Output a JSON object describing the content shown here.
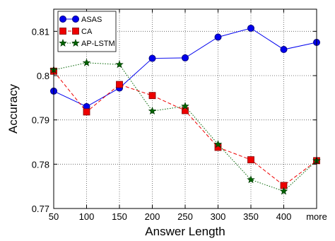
{
  "chart_data": {
    "type": "line",
    "title": "",
    "xlabel": "Answer Length",
    "ylabel": "Accuracy",
    "categories": [
      "50",
      "100",
      "150",
      "200",
      "250",
      "300",
      "350",
      "400",
      "more"
    ],
    "ylim": [
      0.77,
      0.815
    ],
    "yticks": [
      "0.77",
      "0.78",
      "0.79",
      "0.8",
      "0.81"
    ],
    "ytick_values": [
      0.77,
      0.78,
      0.79,
      0.8,
      0.81
    ],
    "grid": true,
    "legend_position": "top-left",
    "series": [
      {
        "name": "ASAS",
        "color": "#0000ee",
        "marker": "circle",
        "line": "solid",
        "values": [
          0.7965,
          0.793,
          0.7972,
          0.8039,
          0.804,
          0.8087,
          0.8107,
          0.8059,
          0.8075
        ]
      },
      {
        "name": "CA",
        "color": "#ee0000",
        "marker": "square",
        "line": "dashed",
        "values": [
          0.801,
          0.7918,
          0.798,
          0.7955,
          0.7921,
          0.7838,
          0.781,
          0.7752,
          0.7808
        ]
      },
      {
        "name": "AP-LSTM",
        "color": "#006400",
        "marker": "star",
        "line": "dotted",
        "values": [
          0.8013,
          0.8029,
          0.8025,
          0.792,
          0.7931,
          0.7845,
          0.7765,
          0.7739,
          0.7808
        ]
      }
    ]
  }
}
